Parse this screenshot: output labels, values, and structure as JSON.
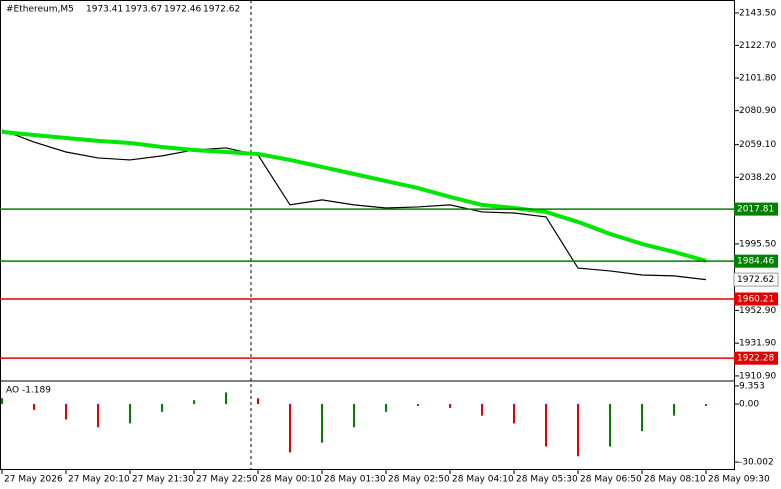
{
  "header": {
    "symbol": "#Ethereum,M5",
    "ohlc": [
      1973.41,
      1973.67,
      1972.46,
      1972.62
    ]
  },
  "chart_data": [
    {
      "type": "line",
      "categories": [
        "27 May 2026",
        null,
        "27 May 20:10",
        null,
        "27 May 21:30",
        null,
        "27 May 22:50",
        null,
        "28 May 00:10",
        null,
        "28 May 01:30",
        null,
        "28 May 02:50",
        null,
        "28 May 04:10",
        null,
        "28 May 05:30",
        null,
        "28 May 06:50",
        null,
        "28 May 08:10",
        null,
        "28 May 09:30"
      ],
      "series": [
        {
          "color": "#000000",
          "values": [
            2068.5,
            2060.8,
            2054.4,
            2050.6,
            2049.3,
            2051.9,
            2055.7,
            2057,
            2052.5,
            2020.5,
            2023.7,
            2020.5,
            2018.5,
            2019.2,
            2020.5,
            2016,
            2015.3,
            2012.8,
            1980,
            1978.2,
            1975.6,
            1975,
            1972.62
          ]
        },
        {
          "color": "#00e600",
          "values": [
            2067.3,
            2065.3,
            2063.4,
            2061.5,
            2060.2,
            2057.6,
            2055.7,
            2054.4,
            2053.1,
            2049.3,
            2044.8,
            2040.3,
            2035.8,
            2031.3,
            2025.6,
            2020.5,
            2018.5,
            2016,
            2009.6,
            2001.9,
            1995.5,
            1990.4,
            1984.6
          ]
        }
      ],
      "levels": [
        {
          "value": 2017.81,
          "color": "#008000"
        },
        {
          "value": 1984.46,
          "color": "#008000"
        },
        {
          "value": 1960.21,
          "color": "#e00000"
        },
        {
          "value": 1922.28,
          "color": "#e00000"
        }
      ],
      "last_price": 1972.62,
      "ylim": [
        1908.3,
        2151.8
      ],
      "yticks": [
        {
          "value": 2143.5,
          "label": "2143.50"
        },
        {
          "value": 2122.7,
          "label": "2122.70"
        },
        {
          "value": 2101.8,
          "label": "2101.80"
        },
        {
          "value": 2080.9,
          "label": "2080.90"
        },
        {
          "value": 2059.1,
          "label": "2059.10"
        },
        {
          "value": 2038.2,
          "label": "2038.20"
        },
        {
          "value": 1995.5,
          "label": "1995.50"
        },
        {
          "value": 1952.9,
          "label": "1952.90"
        },
        {
          "value": 1931.9,
          "label": "1931.90"
        },
        {
          "value": 1910.9,
          "label": "1910.90"
        }
      ]
    },
    {
      "type": "bar",
      "title": "AO -1.189",
      "up_color": "#008000",
      "down_color": "#e00000",
      "values": [
        3,
        -3,
        -8,
        -12,
        -10,
        -4,
        2,
        6,
        3,
        -25,
        -20,
        -12,
        -4,
        -1,
        -2,
        -6,
        -10,
        -22,
        -27,
        -22,
        -14,
        -6,
        -1
      ],
      "ylim": [
        -34.1,
        11.4
      ],
      "yticks": [
        9.353,
        {
          "value": 0,
          "label": "0.00"
        },
        -30.002
      ]
    }
  ]
}
